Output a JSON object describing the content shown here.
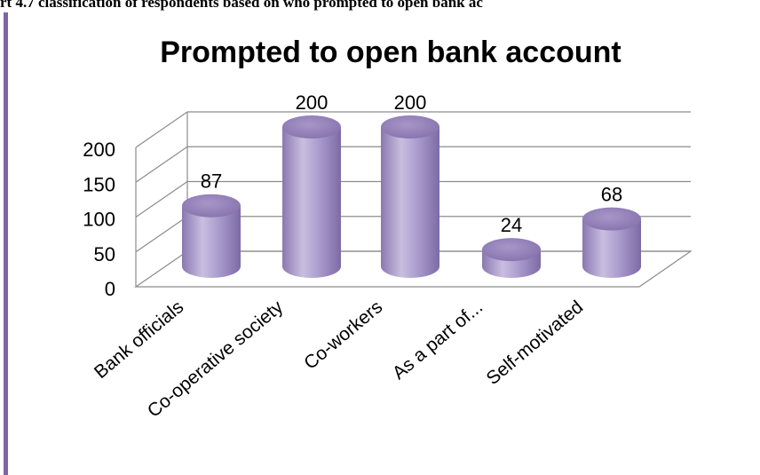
{
  "caption": "rt 4.7 classification of respondents based on who prompted to open bank ac",
  "chart_data": {
    "type": "bar",
    "title": "Prompted to open bank account",
    "categories": [
      "Bank officials",
      "Co-operative society",
      "Co-workers",
      "As a  part of...",
      "Self-motivated"
    ],
    "values": [
      87,
      200,
      200,
      24,
      68
    ],
    "data_labels": [
      "87",
      "200",
      "200",
      "24",
      "68"
    ],
    "yticks": [
      "0",
      "50",
      "100",
      "150",
      "200"
    ],
    "ylim": [
      0,
      200
    ],
    "style": "3d-cylinder",
    "grid": true,
    "legend": "none",
    "bar_color": "#a99bc9",
    "bar_top_color": "#8d7bb3",
    "frame_color": "#8064a2"
  }
}
